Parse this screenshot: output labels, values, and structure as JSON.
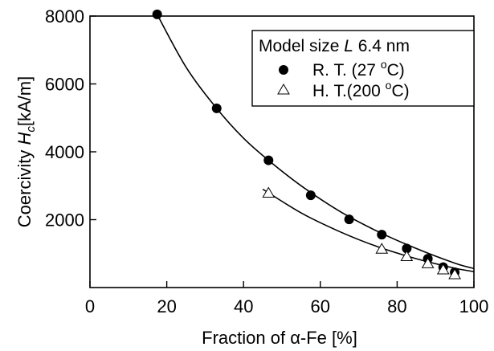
{
  "chart_data": {
    "type": "scatter",
    "xlabel_pre": "Fraction of ",
    "xlabel_alpha": "α",
    "xlabel_post": "-Fe [%]",
    "ylabel_pre": "Coercivity ",
    "ylabel_H": "H",
    "ylabel_sub": "c",
    "ylabel_post": "[kA/m]",
    "xlim": [
      0,
      100
    ],
    "ylim": [
      0,
      8000
    ],
    "x_ticks": [
      0,
      20,
      40,
      60,
      80,
      100
    ],
    "y_ticks": [
      2000,
      4000,
      6000,
      8000
    ],
    "x_tick_labels": [
      "0",
      "20",
      "40",
      "60",
      "80",
      "100"
    ],
    "y_tick_labels": [
      "2000",
      "4000",
      "6000",
      "8000"
    ],
    "legend": {
      "placement": "top-right",
      "title_pre": "Model size ",
      "title_L": "L",
      "title_post": " 6.4 nm",
      "rt_label": "R. T. (27 ",
      "ht_label": "H. T.(200 ",
      "deg_sup": "o",
      "unit_close": "C)"
    },
    "series": [
      {
        "marker": "filled-circle",
        "x": [
          17.5,
          33,
          46.5,
          57.5,
          67.5,
          76,
          82.5,
          88,
          92,
          95
        ],
        "y": [
          8050,
          5280,
          3750,
          2720,
          2010,
          1560,
          1150,
          850,
          600,
          450
        ]
      },
      {
        "marker": "open-triangle",
        "x": [
          46.5,
          76,
          82.5,
          88,
          92,
          95
        ],
        "y": [
          2780,
          1130,
          910,
          700,
          520,
          380
        ]
      }
    ],
    "fits": [
      {
        "x": [
          17.5,
          25,
          33,
          40,
          46.5,
          55,
          65,
          75,
          85,
          95,
          100
        ],
        "y": [
          8050,
          6500,
          5280,
          4400,
          3750,
          3000,
          2250,
          1650,
          1150,
          720,
          560
        ]
      },
      {
        "x": [
          45,
          55,
          65,
          75,
          85,
          95,
          100
        ],
        "y": [
          2900,
          2200,
          1650,
          1200,
          850,
          570,
          470
        ]
      }
    ]
  }
}
